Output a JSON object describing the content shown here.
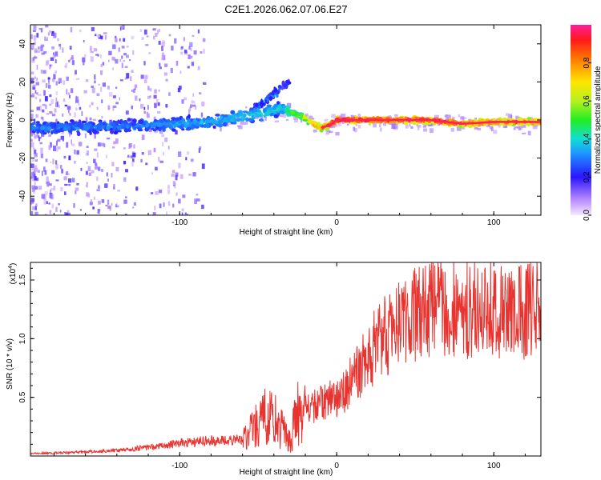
{
  "title": "C2E1.2026.062.07.06.E27",
  "chart_data": [
    {
      "type": "heatmap",
      "title": "C2E1.2026.062.07.06.E27",
      "xlabel": "Height of straight line (km)",
      "ylabel": "Frequency (Hz)",
      "xlim": [
        -195,
        130
      ],
      "ylim": [
        -50,
        50
      ],
      "xticks": [
        -100,
        0,
        100
      ],
      "xtick_labels": [
        "-100",
        "0",
        "100"
      ],
      "yticks": [
        -40,
        -20,
        0,
        20,
        40
      ],
      "ytick_labels": [
        "-40",
        "-20",
        "0",
        "20",
        "40"
      ],
      "colorbar": {
        "label": "Normalized spectral amplitude",
        "range": [
          0,
          1
        ],
        "ticks": [
          0.0,
          0.2,
          0.4,
          0.6,
          0.8
        ],
        "tick_labels": [
          "0.0",
          "0.2",
          "0.4",
          "0.6",
          "0.8"
        ]
      },
      "ridge": {
        "x": [
          -195,
          -160,
          -130,
          -100,
          -80,
          -60,
          -45,
          -35,
          -30,
          -22,
          -15,
          -10,
          -5,
          0,
          20,
          60,
          80,
          100,
          130
        ],
        "freq_hz": [
          -4,
          -4,
          -3,
          -2,
          -1,
          2,
          4,
          6,
          4,
          2,
          -2,
          -4,
          -3,
          0,
          0,
          0,
          -2,
          -1,
          -1
        ],
        "amplitude": [
          0.3,
          0.3,
          0.3,
          0.35,
          0.35,
          0.4,
          0.4,
          0.4,
          0.5,
          0.6,
          0.8,
          0.8,
          0.9,
          1.0,
          0.95,
          0.95,
          0.9,
          0.85,
          0.85
        ]
      },
      "secondary_branch": {
        "x": [
          -55,
          -45,
          -35,
          -30
        ],
        "freq_hz": [
          5,
          10,
          17,
          20
        ],
        "amplitude": [
          0.25,
          0.3,
          0.25,
          0.2
        ]
      }
    },
    {
      "type": "line",
      "xlabel": "Height of straight line (km)",
      "ylabel": "SNR (10 * v/v)",
      "y_multiplier_label": "(x10",
      "y_multiplier_exp": "4",
      "y_multiplier_close": ")",
      "xlim": [
        -195,
        130
      ],
      "ylim": [
        0,
        1.65
      ],
      "xticks": [
        -100,
        0,
        100
      ],
      "xtick_labels": [
        "-100",
        "0",
        "100"
      ],
      "yticks": [
        0.5,
        1.0,
        1.5
      ],
      "ytick_labels": [
        "0.5",
        "1.0",
        "1.5"
      ],
      "series": [
        {
          "name": "SNR",
          "color": "#e8332f",
          "x": [
            -195,
            -170,
            -150,
            -130,
            -110,
            -100,
            -90,
            -80,
            -70,
            -60,
            -55,
            -50,
            -45,
            -40,
            -35,
            -30,
            -25,
            -20,
            -15,
            -10,
            -5,
            0,
            5,
            10,
            15,
            20,
            25,
            30,
            40,
            50,
            60,
            70,
            80,
            90,
            100,
            110,
            120,
            130
          ],
          "values": [
            0.02,
            0.03,
            0.04,
            0.06,
            0.09,
            0.11,
            0.12,
            0.13,
            0.13,
            0.14,
            0.2,
            0.28,
            0.35,
            0.3,
            0.25,
            0.12,
            0.35,
            0.38,
            0.42,
            0.45,
            0.48,
            0.5,
            0.56,
            0.65,
            0.75,
            0.85,
            0.95,
            1.02,
            1.12,
            1.2,
            1.25,
            1.28,
            1.25,
            1.27,
            1.25,
            1.22,
            1.23,
            1.28
          ]
        }
      ]
    }
  ]
}
